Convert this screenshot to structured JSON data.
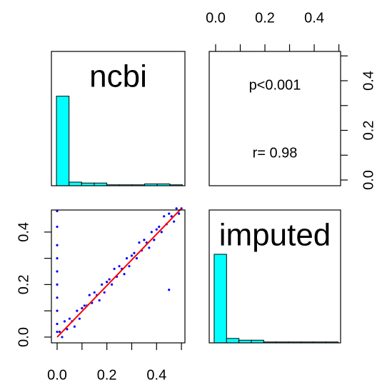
{
  "chart_data": [
    {
      "type": "histogram",
      "title": "ncbi",
      "color": "#00ffff",
      "bins": [
        0,
        0.05,
        0.1,
        0.15,
        0.2,
        0.25,
        0.3,
        0.35,
        0.4,
        0.45,
        0.5
      ],
      "values": [
        1,
        0.04,
        0.03,
        0.03,
        0.01,
        0.01,
        0.01,
        0.02,
        0.02,
        0.01
      ],
      "xlim": [
        -0.02,
        0.51
      ],
      "ylim": [
        0,
        1.5
      ]
    },
    {
      "type": "text",
      "annotations": [
        "p<0.001",
        "r= 0.98"
      ],
      "xlim": [
        -0.026,
        0.507
      ],
      "ylim": [
        -0.023,
        0.518
      ],
      "xticks": [
        {
          "value": 0,
          "label": "0.0"
        },
        {
          "value": 0.2,
          "label": "0.2"
        },
        {
          "value": 0.4,
          "label": "0.4"
        }
      ],
      "minor_xticks": [
        0.1,
        0.3,
        0.5
      ],
      "yticks": [
        {
          "value": 0,
          "label": "0.0"
        },
        {
          "value": 0.2,
          "label": "0.2"
        },
        {
          "value": 0.4,
          "label": "0.4"
        }
      ],
      "minor_yticks": [
        0.1,
        0.3,
        0.5
      ]
    },
    {
      "type": "scatter",
      "color": "#0000ff",
      "xlim": [
        -0.023,
        0.514
      ],
      "ylim": [
        -0.022,
        0.484
      ],
      "xticks": [
        {
          "value": 0,
          "label": "0.0"
        },
        {
          "value": 0.2,
          "label": "0.2"
        },
        {
          "value": 0.4,
          "label": "0.4"
        }
      ],
      "minor_xticks": [
        0.1,
        0.3,
        0.5
      ],
      "yticks": [
        {
          "value": 0,
          "label": "0.0"
        },
        {
          "value": 0.2,
          "label": "0.2"
        },
        {
          "value": 0.4,
          "label": "0.4"
        }
      ],
      "minor_yticks": [
        0.1,
        0.3
      ],
      "x": [
        0,
        0,
        0,
        0,
        0,
        0,
        0,
        0,
        0,
        0,
        0.01,
        0.02,
        0.03,
        0.04,
        0.05,
        0.06,
        0.07,
        0.08,
        0.09,
        0.1,
        0.11,
        0.12,
        0.13,
        0.14,
        0.15,
        0.16,
        0.17,
        0.18,
        0.19,
        0.2,
        0.21,
        0.22,
        0.23,
        0.24,
        0.25,
        0.26,
        0.27,
        0.28,
        0.29,
        0.3,
        0.31,
        0.32,
        0.33,
        0.34,
        0.35,
        0.36,
        0.37,
        0.38,
        0.39,
        0.4,
        0.41,
        0.42,
        0.43,
        0.44,
        0.45,
        0.46,
        0.47,
        0.48,
        0.49,
        0.5,
        0.45
      ],
      "values": [
        0.02,
        0.05,
        0.1,
        0.15,
        0.2,
        0.25,
        0.3,
        0.35,
        0.42,
        0.48,
        0.02,
        0,
        0.06,
        0.03,
        0.07,
        0.06,
        0.04,
        0.1,
        0.07,
        0.11,
        0.12,
        0.12,
        0.16,
        0.13,
        0.17,
        0.16,
        0.14,
        0.2,
        0.17,
        0.21,
        0.22,
        0.2,
        0.26,
        0.23,
        0.27,
        0.26,
        0.24,
        0.3,
        0.27,
        0.31,
        0.32,
        0.3,
        0.36,
        0.33,
        0.37,
        0.36,
        0.34,
        0.4,
        0.37,
        0.41,
        0.42,
        0.4,
        0.46,
        0.43,
        0.47,
        0.46,
        0.44,
        0.49,
        0.47,
        0.49,
        0.18
      ],
      "trend": {
        "color": "#ff0000",
        "x": [
          0,
          0.5
        ],
        "values": [
          0,
          0.49
        ]
      }
    },
    {
      "type": "histogram",
      "title": "imputed",
      "color": "#00ffff",
      "bins": [
        0,
        0.05,
        0.1,
        0.15,
        0.2,
        0.25,
        0.3,
        0.35,
        0.4,
        0.45,
        0.5
      ],
      "values": [
        1,
        0.05,
        0.03,
        0.03,
        0.01,
        0.01,
        0.01,
        0.01,
        0.01,
        0.01
      ],
      "xlim": [
        -0.02,
        0.51
      ],
      "ylim": [
        0,
        1.5
      ]
    }
  ]
}
